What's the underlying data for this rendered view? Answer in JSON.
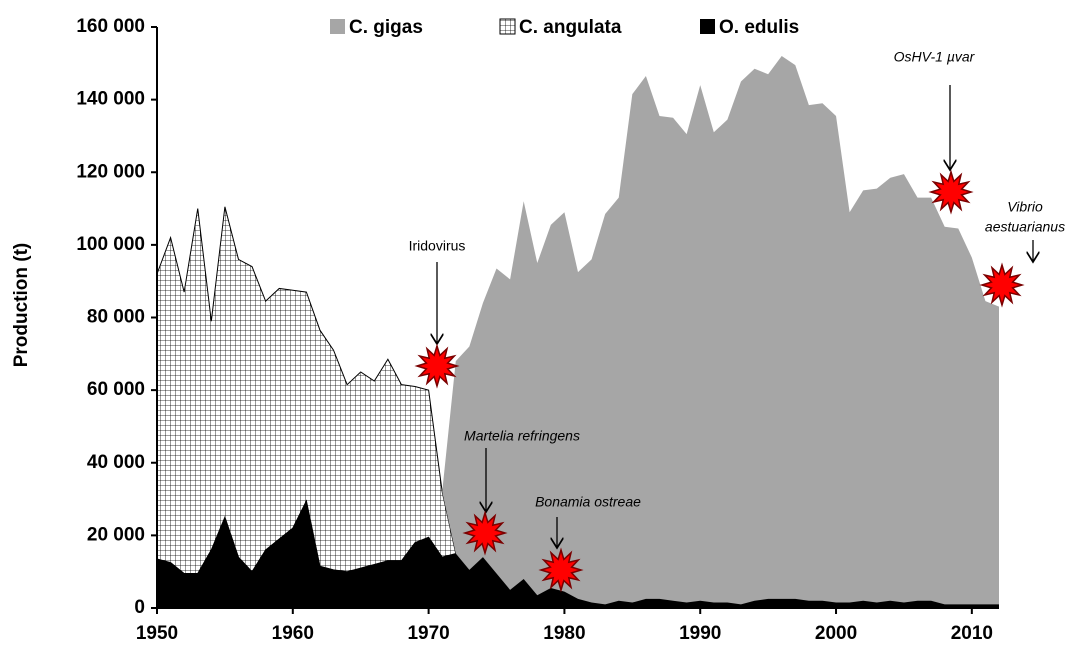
{
  "chart_data": {
    "type": "stacked_area",
    "y_label": "Production (t)",
    "x": [
      1950,
      1951,
      1952,
      1953,
      1954,
      1955,
      1956,
      1957,
      1958,
      1959,
      1960,
      1961,
      1962,
      1963,
      1964,
      1965,
      1966,
      1967,
      1968,
      1969,
      1970,
      1971,
      1972,
      1973,
      1974,
      1975,
      1976,
      1977,
      1978,
      1979,
      1980,
      1981,
      1982,
      1983,
      1984,
      1985,
      1986,
      1987,
      1988,
      1989,
      1990,
      1991,
      1992,
      1993,
      1994,
      1995,
      1996,
      1997,
      1998,
      1999,
      2000,
      2001,
      2002,
      2003,
      2004,
      2005,
      2006,
      2007,
      2008,
      2009,
      2010,
      2011,
      2012
    ],
    "series": [
      {
        "name": "C. gigas",
        "color": "#a6a6a6",
        "values": [
          0,
          0,
          0,
          0,
          0,
          0,
          0,
          0,
          0,
          0,
          0,
          0,
          0,
          0,
          0,
          0,
          0,
          0,
          0,
          0,
          0,
          0,
          53000,
          61500,
          70000,
          84000,
          85500,
          104000,
          91500,
          100000,
          104500,
          90000,
          94500,
          107500,
          111000,
          140000,
          144000,
          133000,
          133000,
          129000,
          142000,
          129500,
          133000,
          144000,
          146500,
          144500,
          149500,
          147000,
          136500,
          137000,
          134000,
          107500,
          113000,
          114000,
          116500,
          118000,
          111000,
          111000,
          104000,
          103500,
          95500,
          83500,
          82000
        ]
      },
      {
        "name": "C. angulata",
        "color": "#000000",
        "pattern": "grid",
        "values": [
          78500,
          89500,
          77500,
          100500,
          63000,
          85500,
          82000,
          84000,
          68500,
          69000,
          65500,
          57500,
          65000,
          60500,
          51500,
          54000,
          50500,
          55500,
          48500,
          43000,
          40500,
          18000,
          0,
          0,
          0,
          0,
          0,
          0,
          0,
          0,
          0,
          0,
          0,
          0,
          0,
          0,
          0,
          0,
          0,
          0,
          0,
          0,
          0,
          0,
          0,
          0,
          0,
          0,
          0,
          0,
          0,
          0,
          0,
          0,
          0,
          0,
          0,
          0,
          0,
          0,
          0,
          0,
          0
        ]
      },
      {
        "name": "O. edulis",
        "color": "#000000",
        "values": [
          13500,
          12500,
          9500,
          9500,
          16000,
          25000,
          14000,
          10000,
          16000,
          19000,
          22000,
          29500,
          11500,
          10500,
          10000,
          11000,
          12000,
          13000,
          13000,
          18000,
          19500,
          14000,
          15000,
          10500,
          14000,
          9500,
          5000,
          8000,
          3500,
          5500,
          4500,
          2500,
          1500,
          1000,
          2000,
          1500,
          2500,
          2500,
          2000,
          1500,
          2000,
          1500,
          1500,
          1000,
          2000,
          2500,
          2500,
          2500,
          2000,
          2000,
          1500,
          1500,
          2000,
          1500,
          2000,
          1500,
          2000,
          2000,
          1000,
          1000,
          1000,
          1000,
          1000
        ]
      }
    ],
    "xlim": [
      1950,
      2012
    ],
    "xticks": [
      1950,
      1960,
      1970,
      1980,
      1990,
      2000,
      2010
    ],
    "ylim": [
      0,
      160000
    ],
    "yticks": [
      0,
      {
        "value": 20000,
        "label": "20 000"
      },
      {
        "value": 40000,
        "label": "40 000"
      },
      {
        "value": 60000,
        "label": "60 000"
      },
      {
        "value": 80000,
        "label": "80 000"
      },
      {
        "value": 100000,
        "label": "100 000"
      },
      {
        "value": 120000,
        "label": "120 000"
      },
      {
        "value": 140000,
        "label": "140 000"
      },
      {
        "value": 160000,
        "label": "160 000"
      }
    ],
    "legend": "top",
    "annotations": [
      {
        "lines": [
          "Iridovirus"
        ]
      },
      {
        "lines": [
          "Martelia refringens"
        ],
        "italic": true
      },
      {
        "lines": [
          "Bonamia ostreae"
        ],
        "italic": true
      },
      {
        "lines": [
          "OsHV-1 µvar"
        ],
        "italic": true
      },
      {
        "lines": [
          "Vibrio",
          "aestuarianus"
        ],
        "italic": true
      }
    ]
  }
}
